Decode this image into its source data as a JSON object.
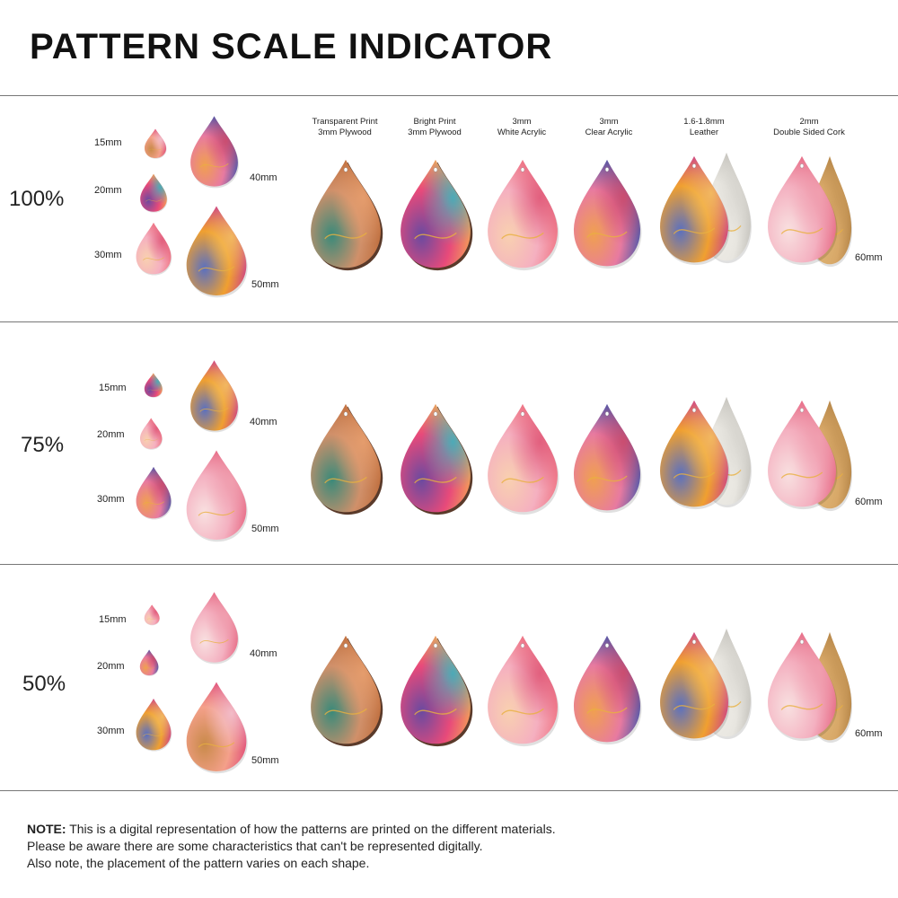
{
  "title": "PATTERN SCALE INDICATOR",
  "materials": [
    {
      "line1": "Transparent Print",
      "line2": "3mm Plywood"
    },
    {
      "line1": "Bright Print",
      "line2": "3mm Plywood"
    },
    {
      "line1": "3mm",
      "line2": "White Acrylic"
    },
    {
      "line1": "3mm",
      "line2": "Clear Acrylic"
    },
    {
      "line1": "1.6-1.8mm",
      "line2": "Leather"
    },
    {
      "line1": "2mm",
      "line2": "Double Sided Cork"
    }
  ],
  "rows": [
    {
      "scale": "100%",
      "sizes": [
        "15mm",
        "20mm",
        "30mm",
        "40mm",
        "50mm"
      ],
      "large_size": "60mm"
    },
    {
      "scale": "75%",
      "sizes": [
        "15mm",
        "20mm",
        "30mm",
        "40mm",
        "50mm"
      ],
      "large_size": "60mm"
    },
    {
      "scale": "50%",
      "sizes": [
        "15mm",
        "20mm",
        "30mm",
        "40mm",
        "50mm"
      ],
      "large_size": "60mm"
    }
  ],
  "note": {
    "bold": "NOTE:",
    "line1": " This is a digital representation of how the patterns are printed on the different materials.",
    "line2": "Please be aware there are some characteristics that can't be represented digitally.",
    "line3": "Also note, the placement of the pattern varies on each shape."
  }
}
